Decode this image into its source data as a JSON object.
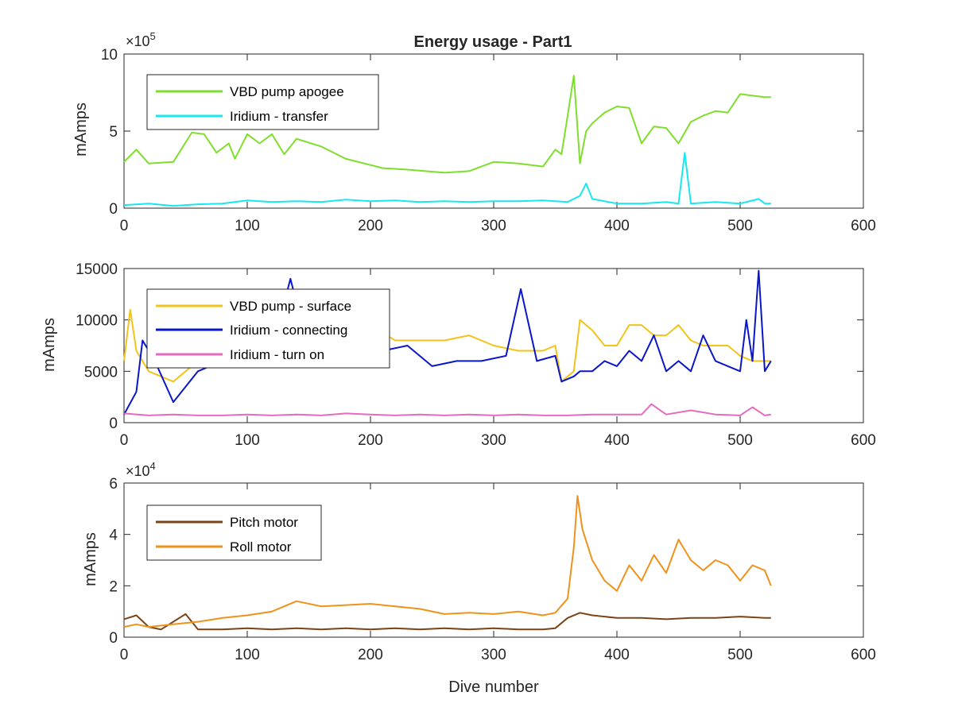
{
  "chart_data": [
    {
      "type": "line",
      "title": "Energy usage - Part1",
      "ylabel": "mAmps",
      "xlabel": "",
      "xlim": [
        0,
        600
      ],
      "ylim": [
        0,
        1000000
      ],
      "x_ticks": [
        "0",
        "100",
        "200",
        "300",
        "400",
        "500",
        "600"
      ],
      "y_ticks": [
        "0",
        "5",
        "10"
      ],
      "y_exponent": {
        "base": "×10",
        "power": "5"
      },
      "legend_position": "top-left",
      "series": [
        {
          "name": "VBD pump apogee",
          "color": "#7fde2d",
          "x": [
            0,
            10,
            20,
            40,
            55,
            65,
            75,
            85,
            90,
            100,
            110,
            120,
            130,
            140,
            160,
            180,
            200,
            210,
            230,
            260,
            280,
            300,
            320,
            340,
            350,
            355,
            360,
            365,
            370,
            375,
            380,
            390,
            400,
            410,
            420,
            430,
            440,
            450,
            460,
            470,
            480,
            490,
            500,
            510,
            520,
            525
          ],
          "y": [
            300000,
            380000,
            290000,
            300000,
            490000,
            480000,
            360000,
            420000,
            320000,
            480000,
            420000,
            480000,
            350000,
            450000,
            400000,
            320000,
            280000,
            260000,
            250000,
            230000,
            240000,
            300000,
            290000,
            270000,
            380000,
            350000,
            600000,
            860000,
            290000,
            500000,
            550000,
            620000,
            660000,
            650000,
            420000,
            530000,
            520000,
            420000,
            560000,
            600000,
            630000,
            620000,
            740000,
            730000,
            720000,
            720000
          ]
        },
        {
          "name": "Iridium - transfer",
          "color": "#18e7ef",
          "x": [
            0,
            20,
            40,
            60,
            80,
            100,
            120,
            140,
            160,
            180,
            200,
            220,
            240,
            260,
            280,
            300,
            320,
            340,
            350,
            360,
            370,
            375,
            380,
            400,
            420,
            440,
            450,
            455,
            460,
            480,
            500,
            515,
            520,
            525
          ],
          "y": [
            20000,
            30000,
            15000,
            25000,
            30000,
            50000,
            40000,
            45000,
            40000,
            55000,
            45000,
            50000,
            40000,
            45000,
            40000,
            45000,
            45000,
            50000,
            45000,
            40000,
            80000,
            160000,
            60000,
            30000,
            30000,
            40000,
            30000,
            360000,
            30000,
            40000,
            30000,
            60000,
            30000,
            30000
          ]
        }
      ]
    },
    {
      "type": "line",
      "title": "",
      "ylabel": "mAmps",
      "xlabel": "",
      "xlim": [
        0,
        600
      ],
      "ylim": [
        0,
        15000
      ],
      "x_ticks": [
        "0",
        "100",
        "200",
        "300",
        "400",
        "500",
        "600"
      ],
      "y_ticks": [
        "0",
        "5000",
        "10000",
        "15000"
      ],
      "legend_position": "top-left",
      "series": [
        {
          "name": "VBD pump - surface",
          "color": "#f2c31a",
          "x": [
            0,
            5,
            10,
            20,
            40,
            60,
            80,
            100,
            120,
            140,
            160,
            180,
            200,
            220,
            240,
            260,
            280,
            300,
            320,
            340,
            350,
            355,
            365,
            370,
            380,
            390,
            400,
            410,
            420,
            430,
            440,
            450,
            460,
            470,
            480,
            490,
            500,
            510,
            520,
            525
          ],
          "y": [
            6000,
            11000,
            7000,
            5000,
            4000,
            6000,
            6500,
            7000,
            6500,
            7500,
            8500,
            8000,
            9500,
            8000,
            8000,
            8000,
            8500,
            7500,
            7000,
            7000,
            7500,
            4000,
            5000,
            10000,
            9000,
            7500,
            7500,
            9500,
            9500,
            8500,
            8500,
            9500,
            8000,
            7500,
            7500,
            7500,
            6500,
            6000,
            6000,
            6000
          ]
        },
        {
          "name": "Iridium - connecting",
          "color": "#0a17c8",
          "x": [
            0,
            10,
            15,
            25,
            40,
            60,
            80,
            100,
            120,
            135,
            150,
            170,
            190,
            210,
            230,
            250,
            270,
            290,
            310,
            322,
            335,
            350,
            355,
            365,
            370,
            380,
            390,
            400,
            410,
            420,
            430,
            440,
            450,
            460,
            470,
            480,
            490,
            500,
            505,
            510,
            515,
            520,
            525
          ],
          "y": [
            800,
            3000,
            8000,
            6000,
            2000,
            5000,
            6000,
            6500,
            7000,
            14000,
            7000,
            7000,
            8500,
            7000,
            7500,
            5500,
            6000,
            6000,
            6500,
            13000,
            6000,
            6500,
            4000,
            4500,
            5000,
            5000,
            6000,
            5500,
            7000,
            6000,
            8500,
            5000,
            6000,
            5000,
            8500,
            6000,
            5500,
            5000,
            10000,
            6000,
            14800,
            5000,
            6000
          ]
        },
        {
          "name": "Iridium - turn on",
          "color": "#e56bbf",
          "x": [
            0,
            20,
            40,
            60,
            80,
            100,
            120,
            140,
            160,
            180,
            200,
            220,
            240,
            260,
            280,
            300,
            320,
            340,
            360,
            380,
            400,
            420,
            428,
            440,
            460,
            480,
            500,
            510,
            520,
            525
          ],
          "y": [
            900,
            700,
            800,
            700,
            700,
            800,
            700,
            800,
            700,
            900,
            800,
            700,
            800,
            700,
            800,
            700,
            800,
            700,
            700,
            800,
            800,
            800,
            1800,
            800,
            1200,
            800,
            700,
            1500,
            700,
            800
          ]
        }
      ]
    },
    {
      "type": "line",
      "title": "",
      "ylabel": "mAmps",
      "xlabel": "Dive number",
      "xlim": [
        0,
        600
      ],
      "ylim": [
        0,
        60000
      ],
      "x_ticks": [
        "0",
        "100",
        "200",
        "300",
        "400",
        "500",
        "600"
      ],
      "y_ticks": [
        "0",
        "2",
        "4",
        "6"
      ],
      "y_exponent": {
        "base": "×10",
        "power": "4"
      },
      "legend_position": "top-left",
      "series": [
        {
          "name": "Pitch motor",
          "color": "#7b4418",
          "x": [
            0,
            10,
            20,
            30,
            50,
            60,
            80,
            100,
            120,
            140,
            160,
            180,
            200,
            220,
            240,
            260,
            280,
            300,
            320,
            340,
            350,
            360,
            370,
            380,
            400,
            420,
            440,
            460,
            480,
            500,
            520,
            525
          ],
          "y": [
            7000,
            8500,
            4000,
            3000,
            9000,
            3000,
            3000,
            3500,
            3000,
            3500,
            3000,
            3500,
            3000,
            3500,
            3000,
            3500,
            3000,
            3500,
            3000,
            3000,
            3500,
            7500,
            9500,
            8500,
            7500,
            7500,
            7000,
            7500,
            7500,
            8000,
            7500,
            7500
          ]
        },
        {
          "name": "Roll motor",
          "color": "#ef921c",
          "x": [
            0,
            10,
            20,
            40,
            60,
            80,
            100,
            120,
            140,
            160,
            180,
            200,
            220,
            240,
            260,
            280,
            300,
            320,
            340,
            350,
            360,
            365,
            368,
            372,
            380,
            390,
            400,
            410,
            420,
            430,
            440,
            450,
            460,
            470,
            480,
            490,
            500,
            510,
            520,
            525
          ],
          "y": [
            4000,
            5000,
            4000,
            5000,
            6000,
            7500,
            8500,
            10000,
            14000,
            12000,
            12500,
            13000,
            12000,
            11000,
            9000,
            9500,
            9000,
            10000,
            8500,
            9500,
            15000,
            35000,
            55000,
            42000,
            30000,
            22000,
            18000,
            28000,
            22000,
            32000,
            25000,
            38000,
            30000,
            26000,
            30000,
            28000,
            22000,
            28000,
            26000,
            20000
          ]
        }
      ]
    }
  ]
}
